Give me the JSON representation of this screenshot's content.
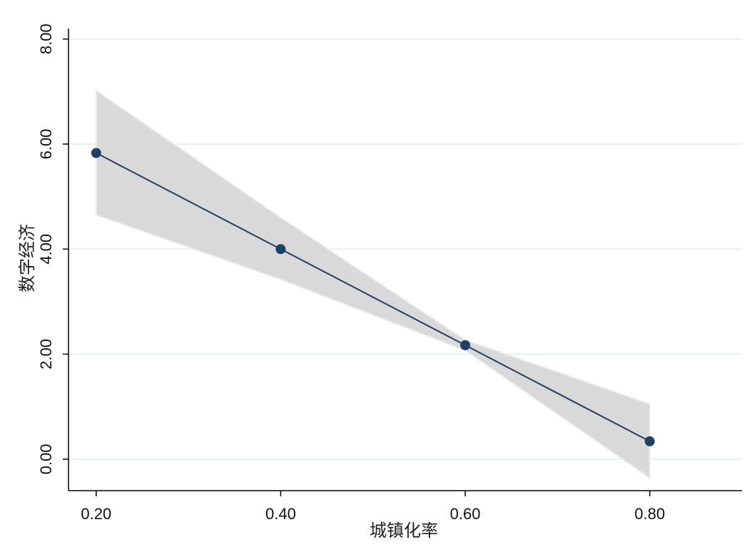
{
  "chart_data": {
    "type": "line",
    "title": "",
    "xlabel": "城镇化率",
    "ylabel": "数字经济",
    "x": [
      0.2,
      0.4,
      0.6,
      0.8
    ],
    "series": [
      {
        "values": [
          5.83,
          4.0,
          2.17,
          0.34
        ],
        "ci_upper": [
          7.02,
          4.6,
          2.27,
          1.05
        ],
        "ci_lower": [
          4.65,
          3.42,
          2.07,
          -0.36
        ]
      }
    ],
    "xlim": [
      0.17,
      0.9
    ],
    "ylim": [
      -0.6,
      8.2
    ],
    "xticks": [
      "0.20",
      "0.40",
      "0.60",
      "0.80"
    ],
    "yticks": [
      "0.00",
      "2.00",
      "4.00",
      "6.00",
      "8.00"
    ],
    "grid": true,
    "legend": "none",
    "colors": {
      "line": "#1f3f66",
      "marker": "#1f3f66",
      "band_fill": "#d9d9d9",
      "band_edge": "#e8f0ee",
      "grid": "#e3eeec",
      "axis": "#000000"
    }
  }
}
